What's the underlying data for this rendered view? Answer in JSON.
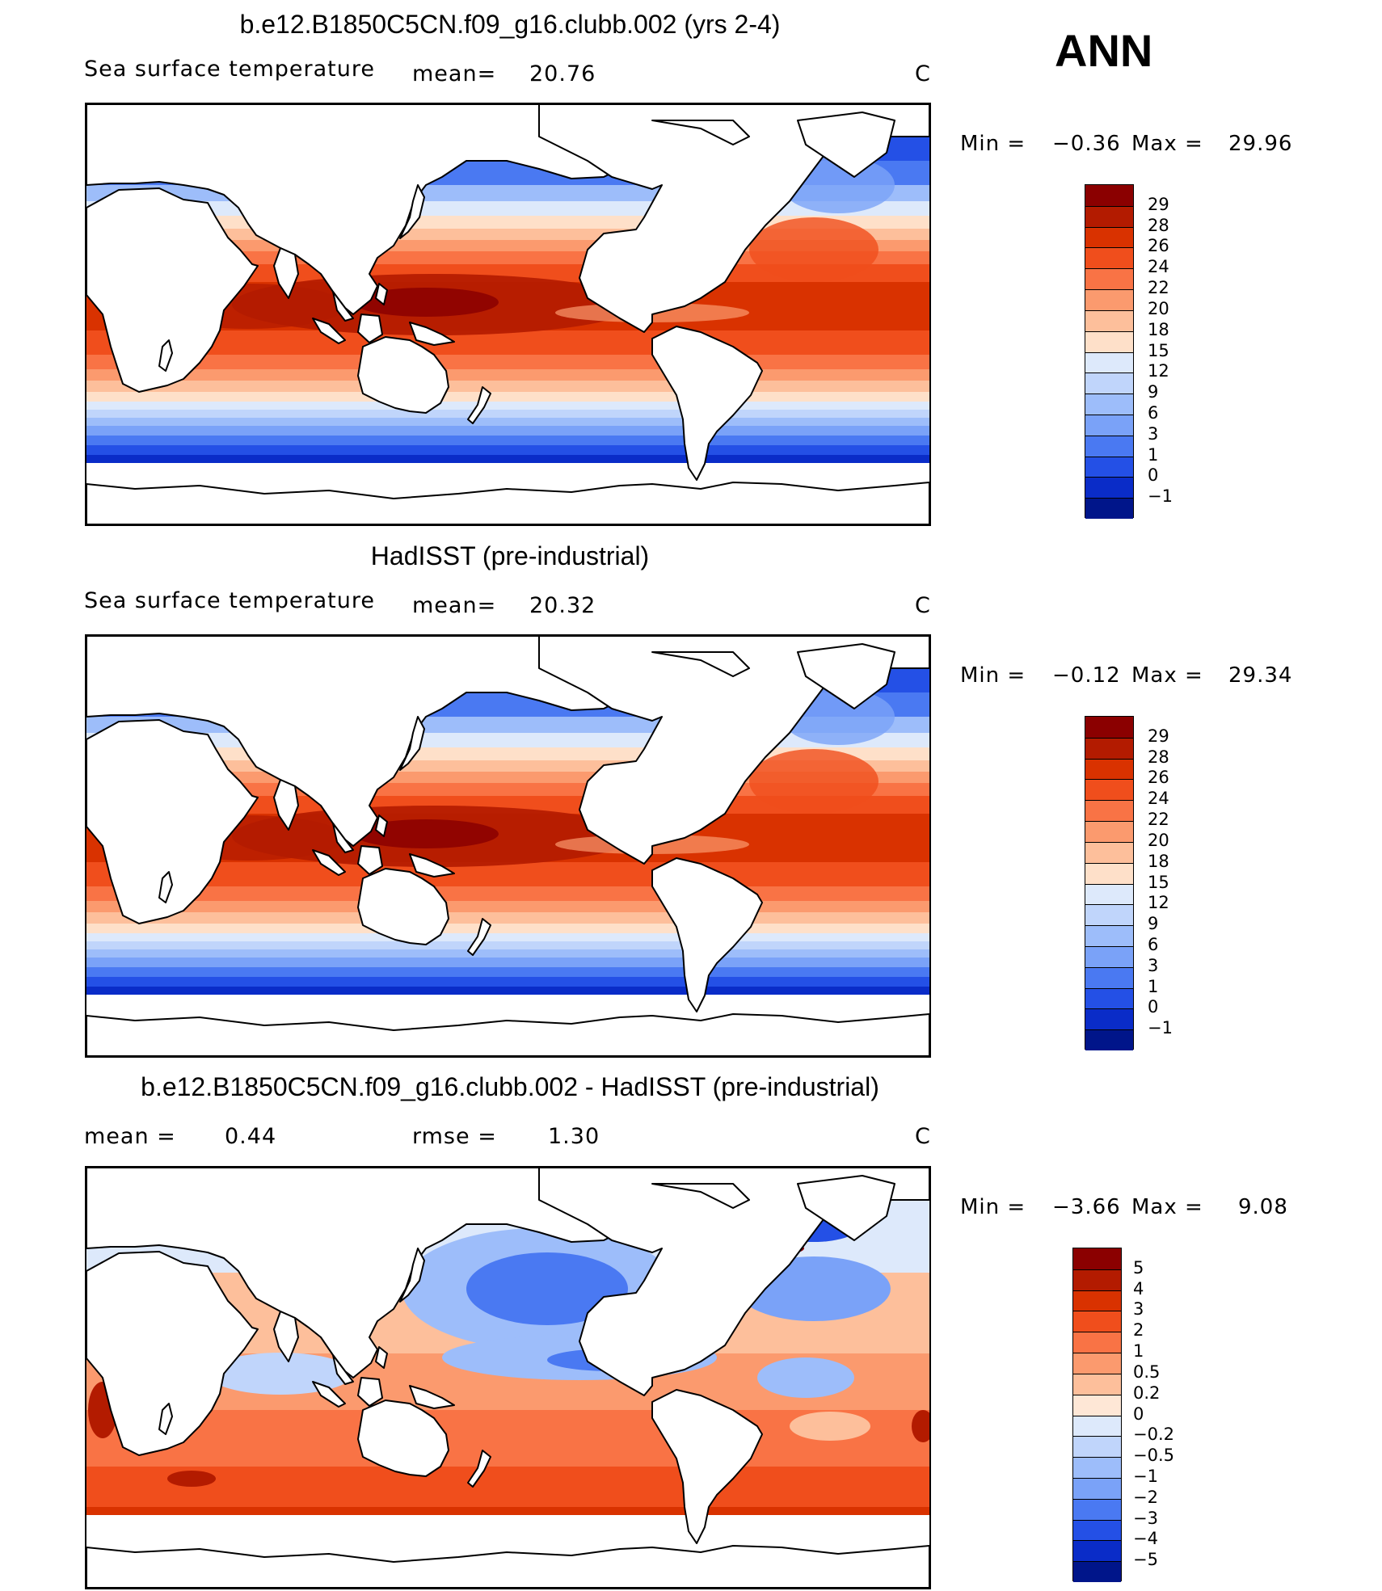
{
  "season": "ANN",
  "panels": [
    {
      "id": "model",
      "title": "b.e12.B1850C5CN.f09_g16.clubb.002 (yrs 2-4)",
      "variable": "Sea surface temperature",
      "stat1_label": "mean=",
      "stat1_value": "20.76",
      "stat2_label": "",
      "stat2_value": "",
      "units": "C",
      "min_label": "Min =",
      "min_value": "−0.36",
      "max_label": "Max =",
      "max_value": "29.96",
      "colorbar": {
        "labels": [
          "29",
          "28",
          "26",
          "24",
          "22",
          "20",
          "18",
          "15",
          "12",
          "9",
          "6",
          "3",
          "1",
          "0",
          "−1"
        ],
        "colors": [
          "#8b0000",
          "#b31b00",
          "#d93200",
          "#f04e1c",
          "#f97345",
          "#fb9a6e",
          "#fdbf9b",
          "#fee0c9",
          "#dde9fb",
          "#c0d5fb",
          "#9dbdfa",
          "#7aa2f8",
          "#4a79f2",
          "#2450e6",
          "#0a2cc8",
          "#00158a"
        ]
      }
    },
    {
      "id": "obs",
      "title": "HadISST (pre-industrial)",
      "variable": "Sea surface temperature",
      "stat1_label": "mean=",
      "stat1_value": "20.32",
      "stat2_label": "",
      "stat2_value": "",
      "units": "C",
      "min_label": "Min =",
      "min_value": "−0.12",
      "max_label": "Max =",
      "max_value": "29.34",
      "colorbar": {
        "labels": [
          "29",
          "28",
          "26",
          "24",
          "22",
          "20",
          "18",
          "15",
          "12",
          "9",
          "6",
          "3",
          "1",
          "0",
          "−1"
        ],
        "colors": [
          "#8b0000",
          "#b31b00",
          "#d93200",
          "#f04e1c",
          "#f97345",
          "#fb9a6e",
          "#fdbf9b",
          "#fee0c9",
          "#dde9fb",
          "#c0d5fb",
          "#9dbdfa",
          "#7aa2f8",
          "#4a79f2",
          "#2450e6",
          "#0a2cc8",
          "#00158a"
        ]
      }
    },
    {
      "id": "diff",
      "title": "b.e12.B1850C5CN.f09_g16.clubb.002 - HadISST (pre-industrial)",
      "variable": "",
      "stat1_label": "mean =",
      "stat1_value": "0.44",
      "stat2_label": "rmse =",
      "stat2_value": "1.30",
      "units": "C",
      "min_label": "Min =",
      "min_value": "−3.66",
      "max_label": "Max =",
      "max_value": "9.08",
      "colorbar": {
        "labels": [
          "5",
          "4",
          "3",
          "2",
          "1",
          "0.5",
          "0.2",
          "0",
          "−0.2",
          "−0.5",
          "−1",
          "−2",
          "−3",
          "−4",
          "−5"
        ],
        "colors": [
          "#8b0000",
          "#b31b00",
          "#d93200",
          "#f04e1c",
          "#f97345",
          "#fb9a6e",
          "#fdbf9b",
          "#fee7d6",
          "#dde9fb",
          "#c0d5fb",
          "#9dbdfa",
          "#7aa2f8",
          "#4a79f2",
          "#2450e6",
          "#0a2cc8",
          "#00158a"
        ]
      }
    }
  ]
}
